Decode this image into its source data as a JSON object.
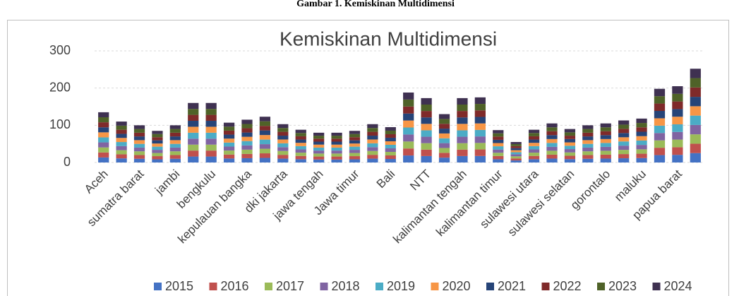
{
  "caption": "Gambar 1. Kemiskinan Multidimensi",
  "chart_data": {
    "type": "stacked_bar",
    "title": "Kemiskinan Multidimensi",
    "categories": [
      "Aceh",
      null,
      "sumatra barat",
      null,
      "jambi",
      null,
      "bengkulu",
      null,
      "kepulauan bangka",
      null,
      "dki jakarta",
      null,
      "jawa tengah",
      null,
      "Jawa timur",
      null,
      "Bali",
      null,
      "NTT",
      null,
      "kalimantan tengah",
      null,
      "kalimantan timur",
      null,
      "sulawesi utara",
      null,
      "sulawesi selatan",
      null,
      "gorontalo",
      null,
      "maluku",
      null,
      "papua barat",
      null
    ],
    "series": [
      {
        "name": "2015",
        "color": "#4472c4",
        "values": [
          13.5,
          11,
          10,
          8.5,
          10,
          16,
          16,
          10.7,
          11.5,
          12.3,
          10.3,
          8.8,
          8,
          8,
          8.5,
          10.3,
          9.5,
          18.8,
          17.3,
          13,
          17.3,
          17.5,
          8.7,
          5.5,
          8.8,
          10.5,
          9,
          10,
          10.5,
          11.3,
          11.8,
          19.8,
          20.5,
          25.2
        ]
      },
      {
        "name": "2016",
        "color": "#c0504d",
        "values": [
          13.5,
          11,
          10,
          8.5,
          10,
          16,
          16,
          10.7,
          11.5,
          12.3,
          10.3,
          8.8,
          8,
          8,
          8.5,
          10.3,
          9.5,
          18.8,
          17.3,
          13,
          17.3,
          17.5,
          8.7,
          5.5,
          8.8,
          10.5,
          9,
          10,
          10.5,
          11.3,
          11.8,
          19.8,
          20.5,
          25.2
        ]
      },
      {
        "name": "2017",
        "color": "#9bbb59",
        "values": [
          13.5,
          11,
          10,
          8.5,
          10,
          16,
          16,
          10.7,
          11.5,
          12.3,
          10.3,
          8.8,
          8,
          8,
          8.5,
          10.3,
          9.5,
          18.8,
          17.3,
          13,
          17.3,
          17.5,
          8.7,
          5.5,
          8.8,
          10.5,
          9,
          10,
          10.5,
          11.3,
          11.8,
          19.8,
          20.5,
          25.2
        ]
      },
      {
        "name": "2018",
        "color": "#8064a2",
        "values": [
          13.5,
          11,
          10,
          8.5,
          10,
          16,
          16,
          10.7,
          11.5,
          12.3,
          10.3,
          8.8,
          8,
          8,
          8.5,
          10.3,
          9.5,
          18.8,
          17.3,
          13,
          17.3,
          17.5,
          8.7,
          5.5,
          8.8,
          10.5,
          9,
          10,
          10.5,
          11.3,
          11.8,
          19.8,
          20.5,
          25.2
        ]
      },
      {
        "name": "2019",
        "color": "#4bacc6",
        "values": [
          13.5,
          11,
          10,
          8.5,
          10,
          16,
          16,
          10.7,
          11.5,
          12.3,
          10.3,
          8.8,
          8,
          8,
          8.5,
          10.3,
          9.5,
          18.8,
          17.3,
          13,
          17.3,
          17.5,
          8.7,
          5.5,
          8.8,
          10.5,
          9,
          10,
          10.5,
          11.3,
          11.8,
          19.8,
          20.5,
          25.2
        ]
      },
      {
        "name": "2020",
        "color": "#f79646",
        "values": [
          13.5,
          11,
          10,
          8.5,
          10,
          16,
          16,
          10.7,
          11.5,
          12.3,
          10.3,
          8.8,
          8,
          8,
          8.5,
          10.3,
          9.5,
          18.8,
          17.3,
          13,
          17.3,
          17.5,
          8.7,
          5.5,
          8.8,
          10.5,
          9,
          10,
          10.5,
          11.3,
          11.8,
          19.8,
          20.5,
          25.2
        ]
      },
      {
        "name": "2021",
        "color": "#264478",
        "values": [
          13.5,
          11,
          10,
          8.5,
          10,
          16,
          16,
          10.7,
          11.5,
          12.3,
          10.3,
          8.8,
          8,
          8,
          8.5,
          10.3,
          9.5,
          18.8,
          17.3,
          13,
          17.3,
          17.5,
          8.7,
          5.5,
          8.8,
          10.5,
          9,
          10,
          10.5,
          11.3,
          11.8,
          19.8,
          20.5,
          25.2
        ]
      },
      {
        "name": "2022",
        "color": "#7f2a2a",
        "values": [
          13.5,
          11,
          10,
          8.5,
          10,
          16,
          16,
          10.7,
          11.5,
          12.3,
          10.3,
          8.8,
          8,
          8,
          8.5,
          10.3,
          9.5,
          18.8,
          17.3,
          13,
          17.3,
          17.5,
          8.7,
          5.5,
          8.8,
          10.5,
          9,
          10,
          10.5,
          11.3,
          11.8,
          19.8,
          20.5,
          25.2
        ]
      },
      {
        "name": "2023",
        "color": "#4f6228",
        "values": [
          13.5,
          11,
          10,
          8.5,
          10,
          16,
          16,
          10.7,
          11.5,
          12.3,
          10.3,
          8.8,
          8,
          8,
          8.5,
          10.3,
          9.5,
          18.8,
          17.3,
          13,
          17.3,
          17.5,
          8.7,
          5.5,
          8.8,
          10.5,
          9,
          10,
          10.5,
          11.3,
          11.8,
          19.8,
          20.5,
          25.2
        ]
      },
      {
        "name": "2024",
        "color": "#3f3151",
        "values": [
          13.5,
          11,
          10,
          8.5,
          10,
          16,
          16,
          10.7,
          11.5,
          12.3,
          10.3,
          8.8,
          8,
          8,
          8.5,
          10.3,
          9.5,
          18.8,
          17.3,
          13,
          17.3,
          17.5,
          8.7,
          5.5,
          8.8,
          10.5,
          9,
          10,
          10.5,
          11.3,
          11.8,
          19.8,
          20.5,
          25.2
        ]
      }
    ],
    "ylim": [
      0,
      300
    ],
    "yticks": [
      0,
      100,
      200,
      300
    ],
    "grid": true,
    "legend": "bottom"
  }
}
